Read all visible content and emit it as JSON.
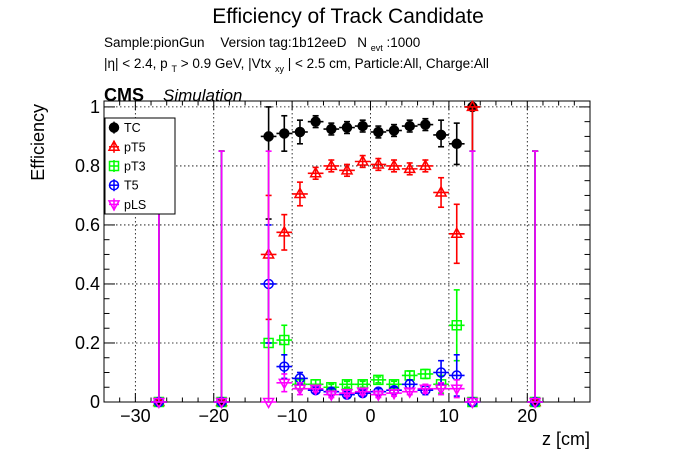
{
  "chart_data": {
    "type": "scatter",
    "title": "Efficiency of Track Candidate",
    "subtitle_line1": {
      "sample": "Sample:pionGun",
      "version": "Version tag:1b12eeD",
      "nevt_label": "N",
      "nevt_sub": "evt",
      "nevt_value": ":1000"
    },
    "subtitle_line2": {
      "eta": "|η| < 2.4, p",
      "pt_sub": "T",
      "pt_cut": " > 0.9 GeV, |Vtx",
      "vtx_sub": "xy",
      "rest": "| < 2.5 cm, Particle:All, Charge:All"
    },
    "cms_label": "CMS",
    "simulation_label": "Simulation",
    "xlabel": "z [cm]",
    "ylabel": "Efficiency",
    "xlim": [
      -34,
      28
    ],
    "ylim": [
      0,
      1.02
    ],
    "xticks": [
      -30,
      -20,
      -10,
      0,
      10,
      20
    ],
    "yticks": [
      0,
      0.2,
      0.4,
      0.6,
      0.8,
      1
    ],
    "ytick_labels": [
      "0",
      "0.2",
      "0.4",
      "0.6",
      "0.8",
      "1"
    ],
    "grid": true,
    "legend_position": "top-left",
    "series": [
      {
        "name": "TC",
        "color": "#000000",
        "marker": "filled-circle",
        "points": [
          {
            "x": -27,
            "y": 0,
            "eyl": 0,
            "eyu": 0.85
          },
          {
            "x": -19,
            "y": 0,
            "eyl": 0,
            "eyu": 0.85
          },
          {
            "x": -13,
            "y": 0.9,
            "eyl": 0.28,
            "eyu": 0.1
          },
          {
            "x": -11,
            "y": 0.91,
            "eyl": 0.06,
            "eyu": 0.06
          },
          {
            "x": -9,
            "y": 0.915,
            "eyl": 0.04,
            "eyu": 0.04
          },
          {
            "x": -7,
            "y": 0.95,
            "eyl": 0.02,
            "eyu": 0.02
          },
          {
            "x": -5,
            "y": 0.925,
            "eyl": 0.02,
            "eyu": 0.02
          },
          {
            "x": -3,
            "y": 0.93,
            "eyl": 0.02,
            "eyu": 0.02
          },
          {
            "x": -1,
            "y": 0.935,
            "eyl": 0.02,
            "eyu": 0.02
          },
          {
            "x": 1,
            "y": 0.915,
            "eyl": 0.02,
            "eyu": 0.02
          },
          {
            "x": 3,
            "y": 0.92,
            "eyl": 0.02,
            "eyu": 0.02
          },
          {
            "x": 5,
            "y": 0.935,
            "eyl": 0.02,
            "eyu": 0.02
          },
          {
            "x": 7,
            "y": 0.94,
            "eyl": 0.02,
            "eyu": 0.02
          },
          {
            "x": 9,
            "y": 0.905,
            "eyl": 0.04,
            "eyu": 0.05
          },
          {
            "x": 11,
            "y": 0.875,
            "eyl": 0.07,
            "eyu": 0.07
          },
          {
            "x": 13,
            "y": 1.0,
            "eyl": 1.0,
            "eyu": 0
          },
          {
            "x": 21,
            "y": 0,
            "eyl": 0,
            "eyu": 0.85
          }
        ]
      },
      {
        "name": "pT5",
        "color": "#ff0000",
        "marker": "open-triangle",
        "points": [
          {
            "x": -27,
            "y": 0,
            "eyl": 0,
            "eyu": 0.85
          },
          {
            "x": -19,
            "y": 0,
            "eyl": 0,
            "eyu": 0.85
          },
          {
            "x": -13,
            "y": 0.5,
            "eyl": 0.22,
            "eyu": 0.2
          },
          {
            "x": -11,
            "y": 0.575,
            "eyl": 0.06,
            "eyu": 0.06
          },
          {
            "x": -9,
            "y": 0.705,
            "eyl": 0.04,
            "eyu": 0.04
          },
          {
            "x": -7,
            "y": 0.775,
            "eyl": 0.02,
            "eyu": 0.02
          },
          {
            "x": -5,
            "y": 0.8,
            "eyl": 0.02,
            "eyu": 0.02
          },
          {
            "x": -3,
            "y": 0.785,
            "eyl": 0.02,
            "eyu": 0.02
          },
          {
            "x": -1,
            "y": 0.815,
            "eyl": 0.02,
            "eyu": 0.02
          },
          {
            "x": 1,
            "y": 0.805,
            "eyl": 0.02,
            "eyu": 0.02
          },
          {
            "x": 3,
            "y": 0.8,
            "eyl": 0.02,
            "eyu": 0.02
          },
          {
            "x": 5,
            "y": 0.79,
            "eyl": 0.02,
            "eyu": 0.02
          },
          {
            "x": 7,
            "y": 0.8,
            "eyl": 0.02,
            "eyu": 0.02
          },
          {
            "x": 9,
            "y": 0.71,
            "eyl": 0.05,
            "eyu": 0.05
          },
          {
            "x": 11,
            "y": 0.57,
            "eyl": 0.1,
            "eyu": 0.1
          },
          {
            "x": 13,
            "y": 1.0,
            "eyl": 1.0,
            "eyu": 0
          },
          {
            "x": 21,
            "y": 0,
            "eyl": 0,
            "eyu": 0.85
          }
        ]
      },
      {
        "name": "pT3",
        "color": "#00ff00",
        "marker": "open-square",
        "points": [
          {
            "x": -27,
            "y": 0,
            "eyl": 0,
            "eyu": 0.85
          },
          {
            "x": -19,
            "y": 0,
            "eyl": 0,
            "eyu": 0.85
          },
          {
            "x": -13,
            "y": 0.2,
            "eyl": 0.2,
            "eyu": 0.2
          },
          {
            "x": -11,
            "y": 0.21,
            "eyl": 0.05,
            "eyu": 0.05
          },
          {
            "x": -9,
            "y": 0.06,
            "eyl": 0.02,
            "eyu": 0.02
          },
          {
            "x": -7,
            "y": 0.06,
            "eyl": 0.015,
            "eyu": 0.015
          },
          {
            "x": -5,
            "y": 0.05,
            "eyl": 0.01,
            "eyu": 0.01
          },
          {
            "x": -3,
            "y": 0.06,
            "eyl": 0.01,
            "eyu": 0.01
          },
          {
            "x": -1,
            "y": 0.06,
            "eyl": 0.01,
            "eyu": 0.01
          },
          {
            "x": 1,
            "y": 0.075,
            "eyl": 0.01,
            "eyu": 0.01
          },
          {
            "x": 3,
            "y": 0.06,
            "eyl": 0.01,
            "eyu": 0.01
          },
          {
            "x": 5,
            "y": 0.09,
            "eyl": 0.015,
            "eyu": 0.015
          },
          {
            "x": 7,
            "y": 0.095,
            "eyl": 0.015,
            "eyu": 0.015
          },
          {
            "x": 9,
            "y": 0.06,
            "eyl": 0.03,
            "eyu": 0.03
          },
          {
            "x": 11,
            "y": 0.26,
            "eyl": 0.12,
            "eyu": 0.12
          },
          {
            "x": 13,
            "y": 0,
            "eyl": 0,
            "eyu": 0.85
          },
          {
            "x": 21,
            "y": 0,
            "eyl": 0,
            "eyu": 0.85
          }
        ]
      },
      {
        "name": "T5",
        "color": "#0000ff",
        "marker": "open-circle",
        "points": [
          {
            "x": -27,
            "y": 0,
            "eyl": 0,
            "eyu": 0.85
          },
          {
            "x": -19,
            "y": 0,
            "eyl": 0,
            "eyu": 0.85
          },
          {
            "x": -13,
            "y": 0.4,
            "eyl": 0.2,
            "eyu": 0.2
          },
          {
            "x": -11,
            "y": 0.12,
            "eyl": 0.04,
            "eyu": 0.04
          },
          {
            "x": -9,
            "y": 0.08,
            "eyl": 0.02,
            "eyu": 0.02
          },
          {
            "x": -7,
            "y": 0.04,
            "eyl": 0.01,
            "eyu": 0.01
          },
          {
            "x": -5,
            "y": 0.035,
            "eyl": 0.01,
            "eyu": 0.01
          },
          {
            "x": -3,
            "y": 0.025,
            "eyl": 0.01,
            "eyu": 0.01
          },
          {
            "x": -1,
            "y": 0.03,
            "eyl": 0.01,
            "eyu": 0.01
          },
          {
            "x": 1,
            "y": 0.035,
            "eyl": 0.01,
            "eyu": 0.01
          },
          {
            "x": 3,
            "y": 0.04,
            "eyl": 0.01,
            "eyu": 0.01
          },
          {
            "x": 5,
            "y": 0.06,
            "eyl": 0.015,
            "eyu": 0.015
          },
          {
            "x": 7,
            "y": 0.04,
            "eyl": 0.015,
            "eyu": 0.015
          },
          {
            "x": 9,
            "y": 0.1,
            "eyl": 0.04,
            "eyu": 0.04
          },
          {
            "x": 11,
            "y": 0.09,
            "eyl": 0.07,
            "eyu": 0.07
          },
          {
            "x": 13,
            "y": 0,
            "eyl": 0,
            "eyu": 0.85
          },
          {
            "x": 21,
            "y": 0,
            "eyl": 0,
            "eyu": 0.85
          }
        ]
      },
      {
        "name": "pLS",
        "color": "#ff00ff",
        "marker": "open-triangle-down",
        "points": [
          {
            "x": -27,
            "y": 0,
            "eyl": 0,
            "eyu": 0.85
          },
          {
            "x": -19,
            "y": 0,
            "eyl": 0,
            "eyu": 0.85
          },
          {
            "x": -13,
            "y": 0,
            "eyl": 0,
            "eyu": 0.85
          },
          {
            "x": -11,
            "y": 0.065,
            "eyl": 0.03,
            "eyu": 0.03
          },
          {
            "x": -9,
            "y": 0.045,
            "eyl": 0.02,
            "eyu": 0.02
          },
          {
            "x": -7,
            "y": 0.045,
            "eyl": 0.01,
            "eyu": 0.01
          },
          {
            "x": -5,
            "y": 0.025,
            "eyl": 0.01,
            "eyu": 0.01
          },
          {
            "x": -3,
            "y": 0.03,
            "eyl": 0.01,
            "eyu": 0.01
          },
          {
            "x": -1,
            "y": 0.035,
            "eyl": 0.01,
            "eyu": 0.01
          },
          {
            "x": 1,
            "y": 0.025,
            "eyl": 0.01,
            "eyu": 0.01
          },
          {
            "x": 3,
            "y": 0.03,
            "eyl": 0.01,
            "eyu": 0.01
          },
          {
            "x": 5,
            "y": 0.035,
            "eyl": 0.01,
            "eyu": 0.01
          },
          {
            "x": 7,
            "y": 0.045,
            "eyl": 0.015,
            "eyu": 0.015
          },
          {
            "x": 9,
            "y": 0.045,
            "eyl": 0.02,
            "eyu": 0.02
          },
          {
            "x": 11,
            "y": 0.045,
            "eyl": 0.03,
            "eyu": 0.03
          },
          {
            "x": 13,
            "y": 0,
            "eyl": 0,
            "eyu": 0.85
          },
          {
            "x": 21,
            "y": 0,
            "eyl": 0,
            "eyu": 0.85
          }
        ]
      }
    ]
  }
}
